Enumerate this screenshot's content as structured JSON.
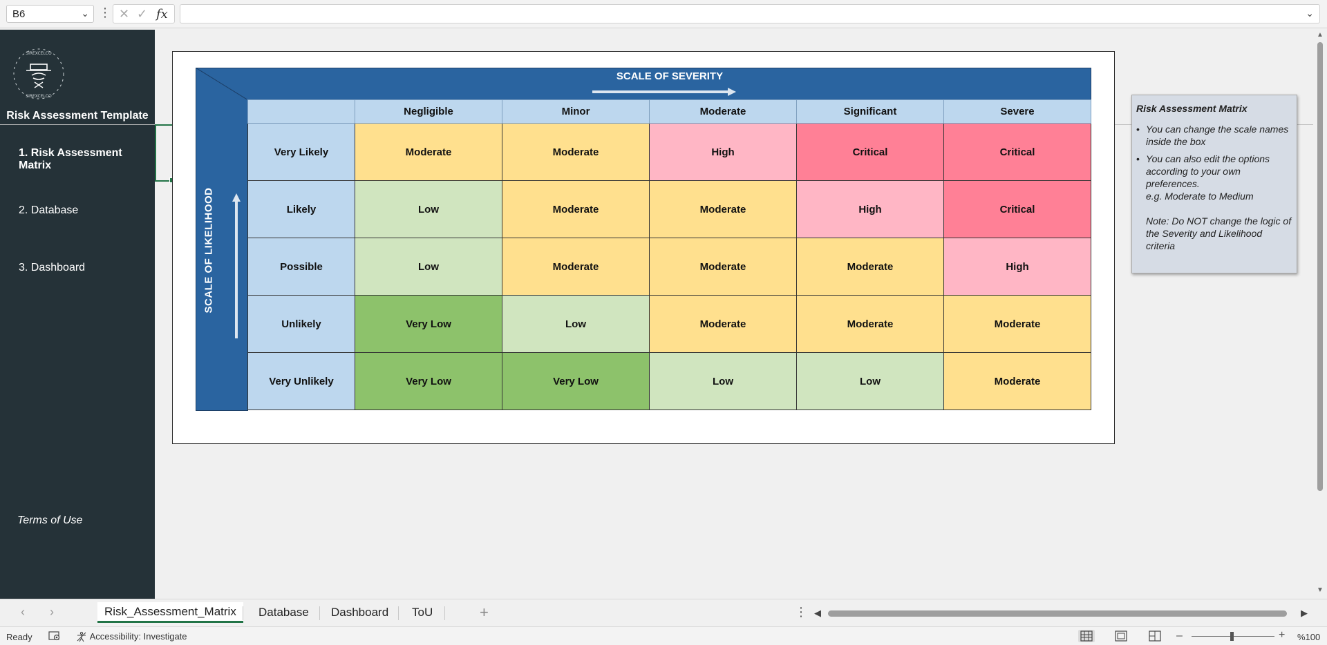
{
  "formula_bar": {
    "name_box": "B6",
    "formula": ""
  },
  "sidebar": {
    "logo_text": "SIREXCELCO",
    "title": "Risk Assessment Template",
    "nav": [
      {
        "label": "1. Risk Assessment Matrix",
        "active": true
      },
      {
        "label": "2. Database",
        "active": false
      },
      {
        "label": "3. Dashboard",
        "active": false
      }
    ],
    "terms": "Terms of Use"
  },
  "matrix": {
    "severity_title": "SCALE OF SEVERITY",
    "likelihood_title": "SCALE OF LIKELIHOOD",
    "severity_levels": [
      "Negligible",
      "Minor",
      "Moderate",
      "Significant",
      "Severe"
    ],
    "rows": [
      {
        "likelihood": "Very Likely",
        "cells": [
          "Moderate",
          "Moderate",
          "High",
          "Critical",
          "Critical"
        ]
      },
      {
        "likelihood": "Likely",
        "cells": [
          "Low",
          "Moderate",
          "Moderate",
          "High",
          "Critical"
        ]
      },
      {
        "likelihood": "Possible",
        "cells": [
          "Low",
          "Moderate",
          "Moderate",
          "Moderate",
          "High"
        ]
      },
      {
        "likelihood": "Unlikely",
        "cells": [
          "Very Low",
          "Low",
          "Moderate",
          "Moderate",
          "Moderate"
        ]
      },
      {
        "likelihood": "Very Unlikely",
        "cells": [
          "Very Low",
          "Very Low",
          "Low",
          "Low",
          "Moderate"
        ]
      }
    ],
    "level_colors": {
      "Very Low": "#8dc26b",
      "Low": "#d0e5bf",
      "Moderate": "#ffe08e",
      "High": "#ffb6c5",
      "Critical": "#ff8096"
    },
    "band_color": "#2a64a0",
    "header_color": "#bdd7ee"
  },
  "note": {
    "title": "Risk Assessment Matrix",
    "bullet1": "You can change the scale names inside the box",
    "bullet2": "You can also edit the options according to your own preferences.",
    "bullet2_example": "e.g. Moderate to Medium",
    "note": "Note: Do NOT change the logic of the Severity and Likelihood criteria"
  },
  "tabs": [
    {
      "label": "Risk_Assessment_Matrix",
      "active": true
    },
    {
      "label": "Database",
      "active": false
    },
    {
      "label": "Dashboard",
      "active": false
    },
    {
      "label": "ToU",
      "active": false
    }
  ],
  "status": {
    "ready": "Ready",
    "accessibility": "Accessibility: Investigate",
    "zoom": "%100"
  },
  "icons": {
    "name_box_dropdown": "chevron-down-icon",
    "cancel": "x-icon",
    "enter": "check-icon",
    "function": "fx-icon",
    "add_sheet": "plus-icon",
    "macro": "record-macro-icon",
    "accessibility": "accessibility-icon"
  }
}
